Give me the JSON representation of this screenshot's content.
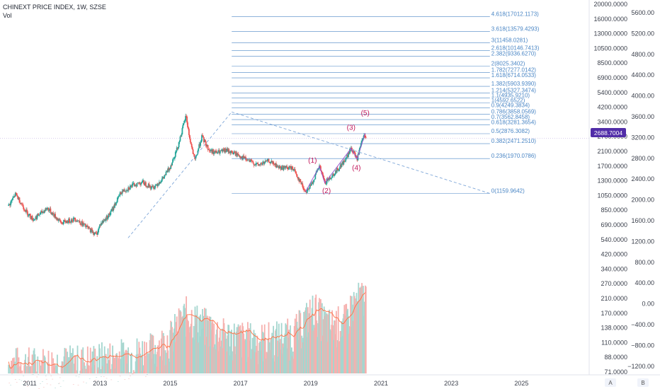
{
  "header": {
    "title": "CHINEXT PRICE INDEX, 1W, SZSE",
    "volume_label": "Vol"
  },
  "price_badge": {
    "value": "2688.7004",
    "color": "#512da8"
  },
  "buttons": {
    "auto": "A",
    "log": "B"
  },
  "colors": {
    "up": "#26a69a",
    "down": "#ef5350",
    "fib": "#4a86c5",
    "trend": "#7ea6d8",
    "wave": "#c2185b",
    "vol_ma": "#ff7043"
  },
  "chart_data": {
    "type": "candlestick",
    "x_ticks": [
      "2011",
      "2013",
      "2015",
      "2017",
      "2019",
      "2021",
      "2023",
      "2025"
    ],
    "price_scale": {
      "type": "log",
      "min": 580,
      "max": 21000
    },
    "volume_scale": {
      "type": "log",
      "min": 68,
      "max": 300
    },
    "price_ticks": [
      "20000.0000",
      "16000.0000",
      "13000.0000",
      "10500.0000",
      "8500.0000",
      "6900.0000",
      "5400.0000",
      "4200.0000",
      "3400.0000",
      "2700.0000",
      "2100.0000",
      "1700.0000",
      "1300.0000",
      "1050.0000",
      "850.0000",
      "690.0000",
      "540.0000",
      "420.0000",
      "340.0000",
      "270.0000",
      "210.0000",
      "170.0000",
      "138.0000",
      "110.0000",
      "88.0000",
      "71.0000"
    ],
    "secondary_ticks": [
      "5600.00",
      "5200.00",
      "4800.00",
      "4400.00",
      "4000.00",
      "3600.00",
      "3200.00",
      "2800.00",
      "2400.00",
      "2000.00",
      "1600.00",
      "1200.00",
      "800.00",
      "400.00",
      "0.00",
      "−400.00",
      "−800.00",
      "−1200.00"
    ],
    "fib_levels": [
      {
        "ratio": "4.618",
        "value": "17012.1173"
      },
      {
        "ratio": "3.618",
        "value": "13579.4293"
      },
      {
        "ratio": "3",
        "value": "11458.0281"
      },
      {
        "ratio": "2.618",
        "value": "10146.7413"
      },
      {
        "ratio": "2.382",
        "value": "9336.6270"
      },
      {
        "ratio": "2",
        "value": "8025.3402"
      },
      {
        "ratio": "1.782",
        "value": "7277.0142"
      },
      {
        "ratio": "1.618",
        "value": "6714.0533"
      },
      {
        "ratio": "1.382",
        "value": "5903.9390"
      },
      {
        "ratio": "1.214",
        "value": "5327.3474"
      },
      {
        "ratio": "1.1",
        "value": "4935.9210"
      },
      {
        "ratio": "1",
        "value": "4592.6522"
      },
      {
        "ratio": "0.9",
        "value": "4249.3834"
      },
      {
        "ratio": "0.786",
        "value": "3858.0569"
      },
      {
        "ratio": "0.7",
        "value": "3562.8458"
      },
      {
        "ratio": "0.618",
        "value": "3281.3654"
      },
      {
        "ratio": "0.5",
        "value": "2876.3082"
      },
      {
        "ratio": "0.382",
        "value": "2471.2510"
      },
      {
        "ratio": "0.236",
        "value": "1970.0786"
      },
      {
        "ratio": "0",
        "value": "1159.9642"
      }
    ],
    "wave_labels": [
      {
        "text": "(1)",
        "date": 2019.05,
        "price": 1850
      },
      {
        "text": "(2)",
        "date": 2019.45,
        "price": 1165
      },
      {
        "text": "(3)",
        "date": 2020.15,
        "price": 3050
      },
      {
        "text": "(4)",
        "date": 2020.3,
        "price": 1650
      },
      {
        "text": "(5)",
        "date": 2020.55,
        "price": 3800
      }
    ],
    "wave_path": [
      {
        "date": 2018.85,
        "price": 1190
      },
      {
        "date": 2019.25,
        "price": 1750
      },
      {
        "date": 2019.4,
        "price": 1360
      },
      {
        "date": 2020.15,
        "price": 2300
      },
      {
        "date": 2020.32,
        "price": 1960
      },
      {
        "date": 2020.55,
        "price": 2900
      }
    ],
    "trend_lines": [
      [
        {
          "date": 2013.8,
          "price": 590
        },
        {
          "date": 2016.75,
          "price": 4000
        }
      ],
      [
        {
          "date": 2016.75,
          "price": 4000
        },
        {
          "date": 2024.1,
          "price": 1160
        }
      ]
    ],
    "price_anchors": [
      [
        2010.4,
        960
      ],
      [
        2010.6,
        1150
      ],
      [
        2010.9,
        880
      ],
      [
        2011.1,
        780
      ],
      [
        2011.5,
        930
      ],
      [
        2011.9,
        740
      ],
      [
        2012.3,
        790
      ],
      [
        2012.6,
        700
      ],
      [
        2012.9,
        620
      ],
      [
        2013.0,
        720
      ],
      [
        2013.3,
        860
      ],
      [
        2013.6,
        1180
      ],
      [
        2013.9,
        1300
      ],
      [
        2014.2,
        1380
      ],
      [
        2014.5,
        1260
      ],
      [
        2014.8,
        1460
      ],
      [
        2015.0,
        1750
      ],
      [
        2015.2,
        2300
      ],
      [
        2015.45,
        3780
      ],
      [
        2015.55,
        2700
      ],
      [
        2015.7,
        1900
      ],
      [
        2015.9,
        2750
      ],
      [
        2016.1,
        2250
      ],
      [
        2016.3,
        2150
      ],
      [
        2016.6,
        2230
      ],
      [
        2016.9,
        2100
      ],
      [
        2017.2,
        1920
      ],
      [
        2017.5,
        1780
      ],
      [
        2017.8,
        1900
      ],
      [
        2018.1,
        1720
      ],
      [
        2018.5,
        1700
      ],
      [
        2018.85,
        1190
      ],
      [
        2019.0,
        1300
      ],
      [
        2019.25,
        1750
      ],
      [
        2019.4,
        1360
      ],
      [
        2019.7,
        1600
      ],
      [
        2020.0,
        1950
      ],
      [
        2020.15,
        2300
      ],
      [
        2020.32,
        1960
      ],
      [
        2020.5,
        2750
      ],
      [
        2020.58,
        2689
      ]
    ],
    "volume_anchors": [
      [
        2010.4,
        75
      ],
      [
        2011.5,
        76
      ],
      [
        2012.5,
        78
      ],
      [
        2013.5,
        85
      ],
      [
        2014.5,
        95
      ],
      [
        2015.0,
        115
      ],
      [
        2015.45,
        170
      ],
      [
        2015.9,
        145
      ],
      [
        2016.5,
        120
      ],
      [
        2017.5,
        110
      ],
      [
        2018.5,
        120
      ],
      [
        2019.1,
        185
      ],
      [
        2019.5,
        140
      ],
      [
        2020.0,
        150
      ],
      [
        2020.2,
        200
      ],
      [
        2020.55,
        230
      ]
    ]
  }
}
